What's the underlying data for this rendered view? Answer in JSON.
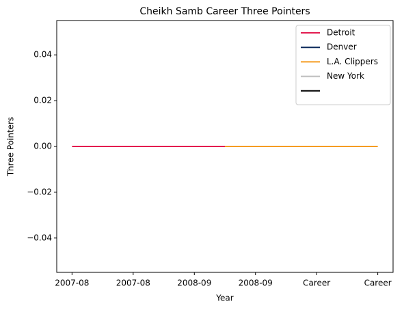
{
  "chart_data": {
    "type": "line",
    "title": "Cheikh Samb Career Three Pointers",
    "x_label": "Year",
    "y_label": "Three Pointers",
    "xlim": [
      -0.25,
      5.25
    ],
    "xticks": [
      {
        "value": 0,
        "label": "2007-08"
      },
      {
        "value": 1,
        "label": "2007-08"
      },
      {
        "value": 2,
        "label": "2008-09"
      },
      {
        "value": 3,
        "label": "2008-09"
      },
      {
        "value": 4,
        "label": "Career"
      },
      {
        "value": 5,
        "label": "Career"
      }
    ],
    "ylim": [
      -0.055,
      0.055
    ],
    "yticks": [
      {
        "value": -0.04,
        "label": "−0.04"
      },
      {
        "value": -0.02,
        "label": "−0.02"
      },
      {
        "value": 0,
        "label": "0.00"
      },
      0.02,
      0.04
    ],
    "legend": "upper right",
    "series": [
      {
        "name": "Detroit",
        "color": "#e31b4f",
        "x": [
          0,
          2.5
        ],
        "values": [
          0,
          0
        ]
      },
      {
        "name": "Denver",
        "color": "#0b2a5b",
        "x": [],
        "values": []
      },
      {
        "name": "L.A. Clippers",
        "color": "#f59c22",
        "x": [
          2.5,
          5
        ],
        "values": [
          0,
          0
        ]
      },
      {
        "name": "New York",
        "color": "#bdbdbd",
        "x": [],
        "values": []
      },
      {
        "color": "#000000",
        "x": [],
        "values": []
      }
    ]
  }
}
